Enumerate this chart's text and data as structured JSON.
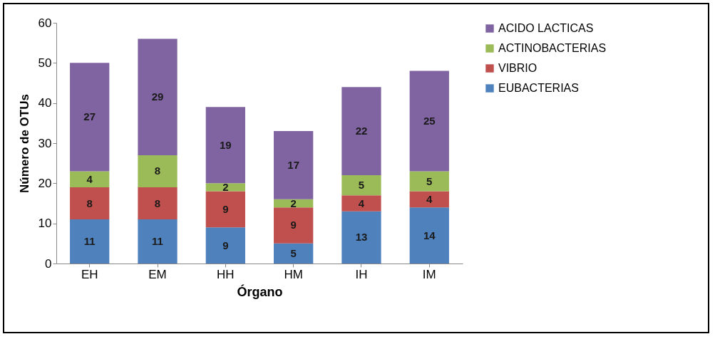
{
  "chart_data": {
    "type": "bar",
    "stacked": true,
    "xlabel": "Órgano",
    "ylabel": "Número de OTUs",
    "categories": [
      "EH",
      "EM",
      "HH",
      "HM",
      "IH",
      "IM"
    ],
    "series": [
      {
        "name": "EUBACTERIAS",
        "color": "#4f81bd",
        "values": [
          11,
          11,
          9,
          5,
          13,
          14
        ]
      },
      {
        "name": "VIBRIO",
        "color": "#c0504d",
        "values": [
          8,
          8,
          9,
          9,
          4,
          4
        ]
      },
      {
        "name": "ACTINOBACTERIAS",
        "color": "#9bbb59",
        "values": [
          4,
          8,
          2,
          2,
          5,
          5
        ]
      },
      {
        "name": "ACIDO LACTICAS",
        "color": "#8064a2",
        "values": [
          27,
          29,
          19,
          17,
          22,
          25
        ]
      }
    ],
    "ylim": [
      0,
      60
    ],
    "yticks": [
      0,
      10,
      20,
      30,
      40,
      50,
      60
    ],
    "grid": false,
    "legend": "right",
    "data_labels": true
  }
}
